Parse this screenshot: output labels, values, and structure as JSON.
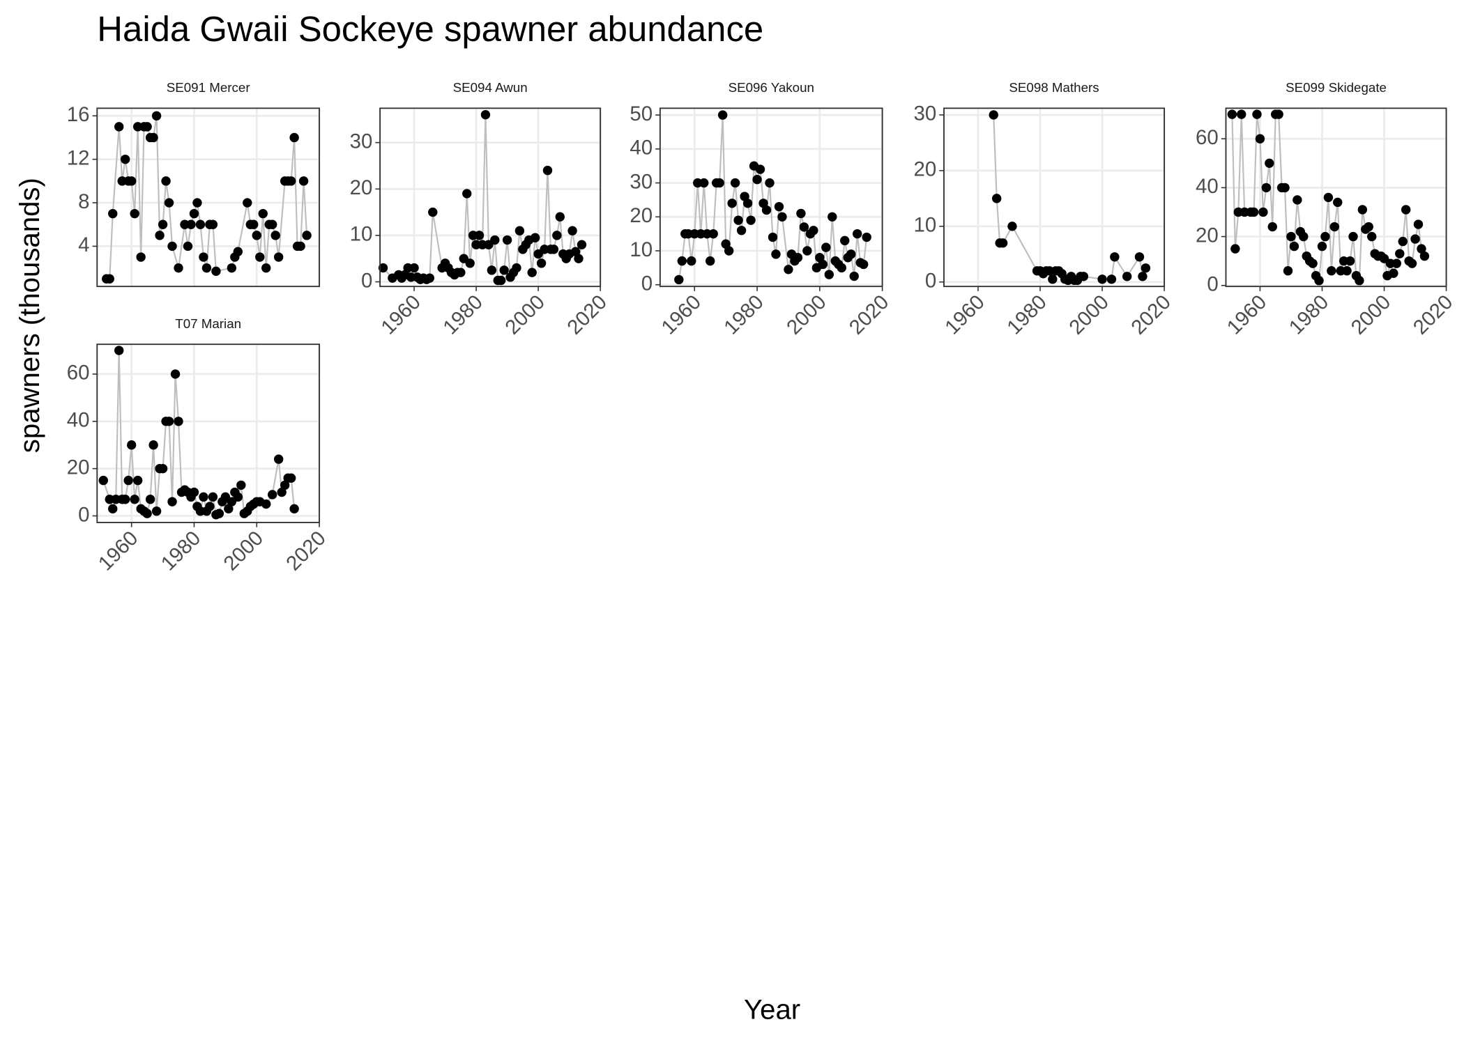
{
  "title": "Haida Gwaii Sockeye spawner abundance",
  "xlabel": "Year",
  "ylabel": "spawners (thousands)",
  "chart_data": [
    {
      "type": "line",
      "title": "SE091 Mercer",
      "line_color": "#bebebe",
      "point_color": "#000000",
      "grid": true,
      "xtick_labels": false,
      "xlim": [
        1949,
        2020
      ],
      "xticks": [
        1960,
        1980,
        2000,
        2020
      ],
      "ylim": [
        0.3,
        16.7
      ],
      "yticks": [
        4,
        8,
        12,
        16
      ],
      "x": [
        1952,
        1953,
        1954,
        1956,
        1957,
        1958,
        1959,
        1960,
        1961,
        1962,
        1963,
        1964,
        1965,
        1966,
        1967,
        1968,
        1969,
        1970,
        1971,
        1972,
        1973,
        1975,
        1977,
        1978,
        1979,
        1980,
        1981,
        1982,
        1983,
        1984,
        1985,
        1986,
        1987,
        1992,
        1993,
        1994,
        1997,
        1998,
        1999,
        2000,
        2001,
        2002,
        2003,
        2004,
        2005,
        2006,
        2007,
        2009,
        2010,
        2011,
        2012,
        2013,
        2014,
        2015,
        2016
      ],
      "values": [
        1,
        1,
        7,
        15,
        10,
        12,
        10,
        10,
        7,
        15,
        3,
        15,
        15,
        14,
        14,
        16,
        5,
        6,
        10,
        8,
        4,
        2,
        6,
        4,
        6,
        7,
        8,
        6,
        3,
        2,
        6,
        6,
        1.7,
        2,
        3,
        3.5,
        8,
        6,
        6,
        5,
        3,
        7,
        2,
        6,
        6,
        5,
        3,
        10,
        10,
        10,
        14,
        4,
        4,
        10,
        5
      ]
    },
    {
      "type": "line",
      "title": "SE094 Awun",
      "line_color": "#bebebe",
      "point_color": "#000000",
      "grid": true,
      "xtick_labels": true,
      "xlim": [
        1949,
        2020
      ],
      "xticks": [
        1960,
        1980,
        2000,
        2020
      ],
      "ylim": [
        -1,
        37.4
      ],
      "yticks": [
        0,
        10,
        20,
        30
      ],
      "x": [
        1950,
        1953,
        1955,
        1956,
        1957,
        1958,
        1959,
        1960,
        1961,
        1962,
        1963,
        1964,
        1965,
        1966,
        1969,
        1970,
        1971,
        1972,
        1973,
        1974,
        1975,
        1976,
        1977,
        1978,
        1979,
        1980,
        1981,
        1982,
        1983,
        1984,
        1985,
        1986,
        1987,
        1988,
        1989,
        1990,
        1991,
        1992,
        1993,
        1994,
        1995,
        1996,
        1997,
        1998,
        1999,
        2000,
        2001,
        2002,
        2003,
        2004,
        2005,
        2006,
        2007,
        2008,
        2009,
        2010,
        2011,
        2012,
        2013,
        2014
      ],
      "values": [
        3,
        0.8,
        1.5,
        0.8,
        1.5,
        3,
        1,
        3,
        1,
        0.5,
        0.8,
        0.5,
        0.8,
        15,
        3,
        4,
        3,
        2,
        1.5,
        2,
        2,
        5,
        19,
        4,
        10,
        8,
        10,
        8,
        36,
        8,
        2.5,
        9,
        0.3,
        0.3,
        2.5,
        9,
        1,
        2,
        3,
        11,
        7,
        8,
        9,
        2,
        9.5,
        6,
        4,
        7,
        24,
        7,
        7,
        10,
        14,
        6,
        5,
        6,
        11,
        6.5,
        5,
        8
      ]
    },
    {
      "type": "line",
      "title": "SE096 Yakoun",
      "line_color": "#bebebe",
      "point_color": "#000000",
      "grid": true,
      "xtick_labels": true,
      "xlim": [
        1949,
        2020
      ],
      "xticks": [
        1960,
        1980,
        2000,
        2020
      ],
      "ylim": [
        -0.5,
        52
      ],
      "yticks": [
        0,
        10,
        20,
        30,
        40,
        50
      ],
      "x": [
        1955,
        1956,
        1957,
        1958,
        1959,
        1960,
        1961,
        1962,
        1963,
        1964,
        1965,
        1966,
        1967,
        1968,
        1969,
        1970,
        1971,
        1972,
        1973,
        1974,
        1975,
        1976,
        1977,
        1978,
        1979,
        1980,
        1981,
        1982,
        1983,
        1984,
        1985,
        1986,
        1987,
        1988,
        1990,
        1991,
        1992,
        1993,
        1994,
        1995,
        1996,
        1997,
        1998,
        1999,
        2000,
        2001,
        2002,
        2003,
        2004,
        2005,
        2006,
        2007,
        2008,
        2009,
        2010,
        2011,
        2012,
        2013,
        2014,
        2015
      ],
      "values": [
        1.5,
        7,
        15,
        15,
        7,
        15,
        30,
        15,
        30,
        15,
        7,
        15,
        30,
        30,
        50,
        12,
        10,
        24,
        30,
        19,
        16,
        26,
        24,
        19,
        35,
        31,
        34,
        24,
        22,
        30,
        14,
        9,
        23,
        20,
        4.5,
        9,
        7,
        8,
        21,
        17,
        10,
        15,
        16,
        5,
        8,
        6,
        11,
        3,
        20,
        7,
        6,
        5,
        13,
        8,
        9,
        2.5,
        15,
        6.5,
        6,
        14
      ]
    },
    {
      "type": "line",
      "title": "SE098 Mathers",
      "line_color": "#bebebe",
      "point_color": "#000000",
      "grid": true,
      "xtick_labels": true,
      "xlim": [
        1949,
        2020
      ],
      "xticks": [
        1960,
        1980,
        2000,
        2020
      ],
      "ylim": [
        -0.8,
        31.2
      ],
      "yticks": [
        0,
        10,
        20,
        30
      ],
      "x": [
        1965,
        1966,
        1967,
        1968,
        1971,
        1979,
        1980,
        1981,
        1982,
        1983,
        1984,
        1985,
        1986,
        1987,
        1988,
        1989,
        1990,
        1991,
        1992,
        1993,
        1994,
        2000,
        2003,
        2004,
        2008,
        2012,
        2013,
        2014
      ],
      "values": [
        30,
        15,
        7,
        7,
        10,
        2,
        2,
        1.5,
        2,
        2,
        0.5,
        2,
        2,
        1.5,
        0.5,
        0.3,
        1,
        0.3,
        0.3,
        1,
        1,
        0.5,
        0.5,
        4.5,
        1,
        4.5,
        1,
        2.5
      ]
    },
    {
      "type": "line",
      "title": "SE099 Skidegate",
      "line_color": "#bebebe",
      "point_color": "#000000",
      "grid": true,
      "xtick_labels": true,
      "xlim": [
        1949,
        2020
      ],
      "xticks": [
        1960,
        1980,
        2000,
        2020
      ],
      "ylim": [
        -0.4,
        72.5
      ],
      "yticks": [
        0,
        20,
        40,
        60
      ],
      "x": [
        1951,
        1952,
        1953,
        1954,
        1955,
        1957,
        1958,
        1959,
        1960,
        1961,
        1962,
        1963,
        1964,
        1965,
        1966,
        1967,
        1968,
        1969,
        1970,
        1971,
        1972,
        1973,
        1974,
        1975,
        1976,
        1977,
        1978,
        1979,
        1980,
        1981,
        1982,
        1983,
        1984,
        1985,
        1986,
        1987,
        1988,
        1989,
        1990,
        1991,
        1992,
        1993,
        1994,
        1995,
        1996,
        1997,
        1998,
        1999,
        2000,
        2001,
        2002,
        2003,
        2004,
        2005,
        2006,
        2007,
        2008,
        2009,
        2010,
        2011,
        2012,
        2013
      ],
      "values": [
        70,
        15,
        30,
        70,
        30,
        30,
        30,
        70,
        60,
        30,
        40,
        50,
        24,
        70,
        70,
        40,
        40,
        6,
        20,
        16,
        35,
        22,
        20,
        12,
        10,
        9,
        4,
        2,
        16,
        20,
        36,
        6,
        24,
        34,
        6,
        10,
        6,
        10,
        20,
        4,
        2,
        31,
        23,
        24,
        20,
        13,
        12,
        12,
        11,
        4,
        9,
        5,
        9,
        13,
        18,
        31,
        10,
        9,
        19,
        25,
        15,
        12
      ]
    },
    {
      "type": "line",
      "title": "T07 Marian",
      "line_color": "#bebebe",
      "point_color": "#000000",
      "grid": true,
      "xtick_labels": true,
      "xlim": [
        1949,
        2020
      ],
      "xticks": [
        1960,
        1980,
        2000,
        2020
      ],
      "ylim": [
        -2.8,
        72.6
      ],
      "yticks": [
        0,
        20,
        40,
        60
      ],
      "x": [
        1951,
        1953,
        1954,
        1955,
        1956,
        1957,
        1958,
        1959,
        1960,
        1961,
        1962,
        1963,
        1964,
        1965,
        1966,
        1967,
        1968,
        1969,
        1970,
        1971,
        1972,
        1973,
        1974,
        1975,
        1976,
        1977,
        1978,
        1979,
        1980,
        1981,
        1982,
        1983,
        1984,
        1985,
        1986,
        1987,
        1988,
        1989,
        1990,
        1991,
        1992,
        1993,
        1994,
        1995,
        1996,
        1997,
        1998,
        1999,
        2000,
        2001,
        2003,
        2005,
        2007,
        2008,
        2009,
        2010,
        2011,
        2012
      ],
      "values": [
        15,
        7,
        3,
        7,
        70,
        7,
        7,
        15,
        30,
        7,
        15,
        3,
        2,
        1,
        7,
        30,
        2,
        20,
        20,
        40,
        40,
        6,
        60,
        40,
        10,
        11,
        10,
        8,
        10,
        4,
        2,
        8,
        2,
        4,
        8,
        0.5,
        1,
        6,
        8,
        3,
        6,
        10,
        8,
        13,
        1,
        2,
        4,
        5,
        6,
        6,
        5,
        9,
        24,
        10,
        13,
        16,
        16,
        3
      ]
    }
  ]
}
